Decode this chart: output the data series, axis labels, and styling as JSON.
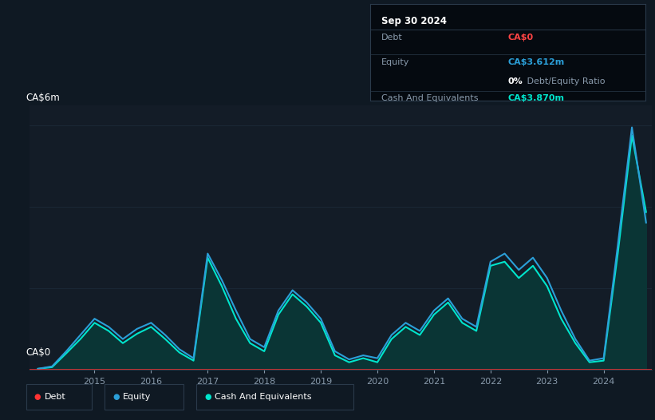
{
  "bg_color": "#0f1923",
  "plot_bg_color": "#131c27",
  "ylabel": "CA$6m",
  "ylabel_zero": "CA$0",
  "ylim": [
    0,
    6.5
  ],
  "grid_color": "#1e2d3d",
  "debt_color": "#ff3333",
  "equity_color": "#2b9fd8",
  "cash_color": "#00e5cc",
  "cash_fill_color": "#0a3535",
  "info_box": {
    "title": "Sep 30 2024",
    "debt_label": "Debt",
    "debt_value": "CA$0",
    "debt_color": "#ff4444",
    "equity_label": "Equity",
    "equity_value": "CA$3.612m",
    "equity_color": "#2b9fd8",
    "ratio_bold": "0%",
    "ratio_rest": " Debt/Equity Ratio",
    "cash_label": "Cash And Equivalents",
    "cash_value": "CA$3.870m",
    "cash_color": "#00e5cc",
    "bg_color": "#050a10",
    "border_color": "#2a3a4a"
  },
  "years": [
    2014.0,
    2014.25,
    2014.5,
    2014.75,
    2015.0,
    2015.25,
    2015.5,
    2015.75,
    2016.0,
    2016.25,
    2016.5,
    2016.75,
    2017.0,
    2017.25,
    2017.5,
    2017.75,
    2018.0,
    2018.25,
    2018.5,
    2018.75,
    2019.0,
    2019.25,
    2019.5,
    2019.75,
    2020.0,
    2020.25,
    2020.5,
    2020.75,
    2021.0,
    2021.25,
    2021.5,
    2021.75,
    2022.0,
    2022.25,
    2022.5,
    2022.75,
    2023.0,
    2023.25,
    2023.5,
    2023.75,
    2024.0,
    2024.25,
    2024.5,
    2024.75
  ],
  "equity": [
    0.02,
    0.08,
    0.45,
    0.85,
    1.25,
    1.05,
    0.75,
    1.0,
    1.15,
    0.85,
    0.5,
    0.28,
    2.85,
    2.2,
    1.45,
    0.75,
    0.55,
    1.45,
    1.95,
    1.65,
    1.25,
    0.45,
    0.25,
    0.35,
    0.28,
    0.85,
    1.15,
    0.95,
    1.45,
    1.75,
    1.25,
    1.05,
    2.65,
    2.85,
    2.45,
    2.75,
    2.25,
    1.45,
    0.75,
    0.22,
    0.28,
    3.05,
    5.95,
    3.612
  ],
  "cash": [
    0.02,
    0.06,
    0.4,
    0.75,
    1.15,
    0.95,
    0.65,
    0.88,
    1.05,
    0.75,
    0.42,
    0.22,
    2.75,
    2.05,
    1.25,
    0.65,
    0.45,
    1.35,
    1.85,
    1.55,
    1.15,
    0.35,
    0.18,
    0.28,
    0.18,
    0.75,
    1.05,
    0.85,
    1.35,
    1.65,
    1.15,
    0.95,
    2.55,
    2.65,
    2.25,
    2.55,
    2.05,
    1.25,
    0.65,
    0.18,
    0.22,
    2.85,
    5.75,
    3.87
  ],
  "debt_line": 0.0,
  "xtick_years": [
    2015,
    2016,
    2017,
    2018,
    2019,
    2020,
    2021,
    2022,
    2023,
    2024
  ],
  "legend_entries": [
    "Debt",
    "Equity",
    "Cash And Equivalents"
  ],
  "xlim_start": 2013.85,
  "xlim_end": 2024.85
}
